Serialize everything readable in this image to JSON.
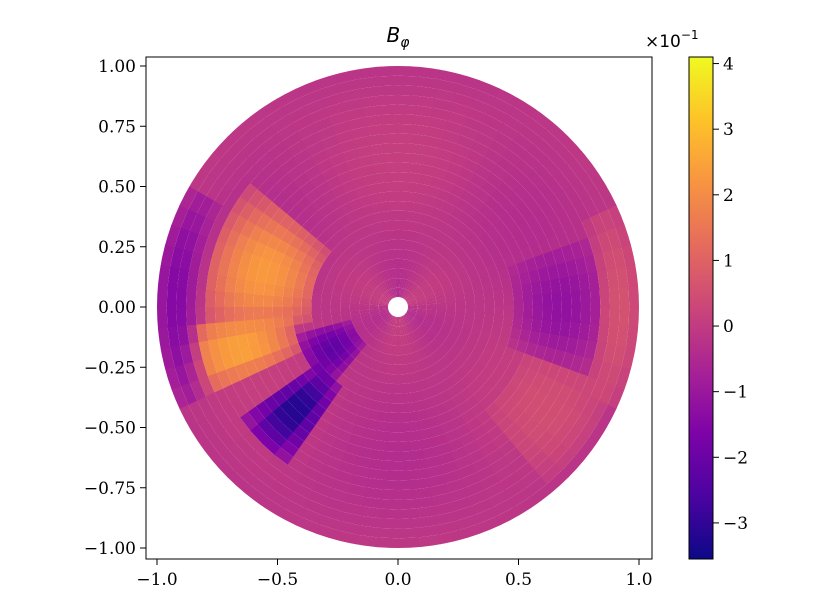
{
  "chart_data": {
    "type": "heatmap",
    "subtype": "polar-disk",
    "title": "B",
    "title_subscript": "φ",
    "x_range": [
      -1.0,
      1.0
    ],
    "y_range": [
      -1.0,
      1.0
    ],
    "x_ticks": [
      -1.0,
      -0.5,
      0.0,
      0.5,
      1.0
    ],
    "y_ticks": [
      1.0,
      0.75,
      0.5,
      0.25,
      0.0,
      -0.25,
      -0.5,
      -0.75,
      -1.0
    ],
    "x_tick_labels": [
      "−1.0",
      "−0.5",
      "0.0",
      "0.5",
      "1.0"
    ],
    "y_tick_labels": [
      "1.00",
      "0.75",
      "0.50",
      "0.25",
      "0.00",
      "−0.25",
      "−0.50",
      "−0.75",
      "−1.00"
    ],
    "disk_radius": 1.0,
    "inner_hole_radius": 0.04,
    "colormap": "plasma",
    "colorbar": {
      "range": [
        -3.55,
        4.1
      ],
      "ticks": [
        4,
        3,
        2,
        1,
        0,
        -1,
        -2,
        -3
      ],
      "tick_labels": [
        "4",
        "3",
        "2",
        "1",
        "0",
        "−1",
        "−2",
        "−3"
      ],
      "multiplier_base": "×10",
      "multiplier_exp": "−1",
      "placement": "right"
    },
    "features": [
      {
        "region": "left upper-mid shell",
        "theta_deg": [
          140,
          190
        ],
        "r": [
          0.35,
          0.8
        ],
        "value": 2.3
      },
      {
        "region": "left mid shell",
        "theta_deg": [
          185,
          205
        ],
        "r": [
          0.45,
          0.9
        ],
        "value": 2.5
      },
      {
        "region": "left outer edge",
        "theta_deg": [
          150,
          205
        ],
        "r": [
          0.85,
          1.0
        ],
        "value": -1.5
      },
      {
        "region": "lower-left dark band",
        "theta_deg": [
          215,
          235
        ],
        "r": [
          0.4,
          0.8
        ],
        "value": -3.3
      },
      {
        "region": "lower-left inner",
        "theta_deg": [
          195,
          230
        ],
        "r": [
          0.2,
          0.45
        ],
        "value": -2.2
      },
      {
        "region": "right shell",
        "theta_deg": [
          -20,
          20
        ],
        "r": [
          0.5,
          0.85
        ],
        "value": -1.2
      },
      {
        "region": "right outer",
        "theta_deg": [
          -25,
          25
        ],
        "r": [
          0.85,
          1.0
        ],
        "value": 0.6
      },
      {
        "region": "lower-right shell",
        "theta_deg": [
          -50,
          -20
        ],
        "r": [
          0.55,
          0.95
        ],
        "value": 0.5
      }
    ]
  }
}
